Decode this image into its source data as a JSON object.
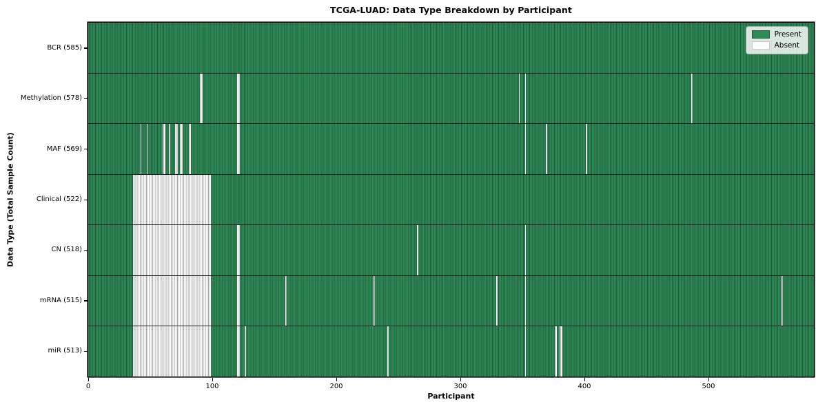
{
  "title": "TCGA-LUAD: Data Type Breakdown by Participant",
  "xlabel": "Participant",
  "ylabel": "Data Type (Total Sample Count)",
  "legend": {
    "present_label": "Present",
    "absent_label": "Absent"
  },
  "colors": {
    "present": "#2e8b57",
    "present_edge": "#1d5b39",
    "absent": "#ffffff",
    "absent_edge": "#a6a6a6",
    "row_separator": "#1d1d1d"
  },
  "chart_data": {
    "type": "heatmap",
    "title": "TCGA-LUAD: Data Type Breakdown by Participant",
    "xlabel": "Participant",
    "ylabel": "Data Type (Total Sample Count)",
    "legend_entries": [
      "Present",
      "Absent"
    ],
    "legend_position": "upper right",
    "n_participants": 585,
    "x_ticks": [
      0,
      100,
      200,
      300,
      400,
      500
    ],
    "cell_states": [
      "present",
      "absent"
    ],
    "rows": [
      {
        "label": "BCR (585)",
        "name": "BCR",
        "present_count": 585,
        "absent": []
      },
      {
        "label": "Methylation (578)",
        "name": "Methylation",
        "present_count": 578,
        "absent": [
          90,
          91,
          120,
          121,
          347,
          352,
          486
        ]
      },
      {
        "label": "MAF (569)",
        "name": "MAF",
        "present_count": 569,
        "absent": [
          42,
          47,
          60,
          61,
          65,
          70,
          71,
          74,
          75,
          81,
          82,
          120,
          121,
          352,
          369,
          401
        ]
      },
      {
        "label": "Clinical (522)",
        "name": "Clinical",
        "present_count": 522,
        "absent": [
          [
            36,
            98
          ]
        ]
      },
      {
        "label": "CN (518)",
        "name": "CN",
        "present_count": 518,
        "absent": [
          [
            36,
            98
          ],
          120,
          121,
          265,
          352
        ]
      },
      {
        "label": "mRNA (515)",
        "name": "mRNA",
        "present_count": 515,
        "absent": [
          [
            36,
            98
          ],
          120,
          121,
          159,
          230,
          329,
          352,
          559
        ]
      },
      {
        "label": "miR (513)",
        "name": "miR",
        "present_count": 513,
        "absent": [
          [
            36,
            98
          ],
          120,
          121,
          126,
          241,
          352,
          376,
          377,
          380,
          381
        ]
      }
    ]
  }
}
